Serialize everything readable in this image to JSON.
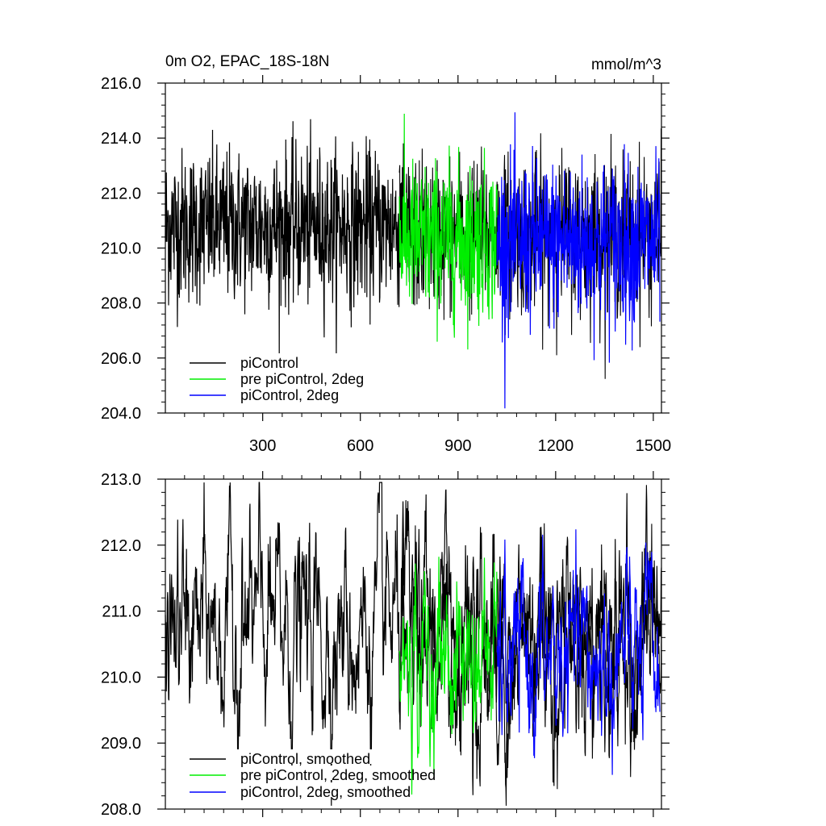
{
  "chart_data": [
    {
      "type": "line",
      "title_left": "0m O2, EPAC_18S-18N",
      "title_right": "mmol/m^3",
      "xlabel": "",
      "ylabel": "",
      "xlim": [
        1,
        1525
      ],
      "ylim": [
        204.0,
        216.0
      ],
      "yticks": [
        "204.0",
        "206.0",
        "208.0",
        "210.0",
        "212.0",
        "214.0",
        "216.0"
      ],
      "xticks": [
        "300",
        "600",
        "900",
        "1200",
        "1500"
      ],
      "legend_position": "bottom-left",
      "series": [
        {
          "name": "piControl",
          "color": "#000000",
          "x_range": [
            1,
            1525
          ],
          "mean": 210.8,
          "std": 1.4,
          "visible_range": [
            1,
            720
          ]
        },
        {
          "name": "pre piControl, 2deg",
          "color": "#00ee00",
          "x_range": [
            720,
            1020
          ],
          "mean": 210.3,
          "std": 1.4
        },
        {
          "name": "piControl, 2deg",
          "color": "#0000ff",
          "x_range": [
            1020,
            1520
          ],
          "mean": 210.2,
          "std": 1.5
        }
      ]
    },
    {
      "type": "line",
      "xlabel": "",
      "ylabel": "",
      "xlim": [
        1,
        1525
      ],
      "ylim": [
        208.0,
        213.0
      ],
      "yticks": [
        "208.0",
        "209.0",
        "210.0",
        "211.0",
        "212.0",
        "213.0"
      ],
      "legend_position": "bottom-left",
      "series": [
        {
          "name": "piControl, smoothed",
          "color": "#000000",
          "x_range": [
            1,
            1525
          ],
          "mean": 210.7,
          "std": 0.6
        },
        {
          "name": "pre piControl, 2deg, smoothed",
          "color": "#00ee00",
          "x_range": [
            720,
            1020
          ],
          "mean": 210.3,
          "std": 0.55
        },
        {
          "name": "piControl, 2deg, smoothed",
          "color": "#0000ff",
          "x_range": [
            1020,
            1520
          ],
          "mean": 210.2,
          "std": 0.55
        }
      ]
    }
  ]
}
